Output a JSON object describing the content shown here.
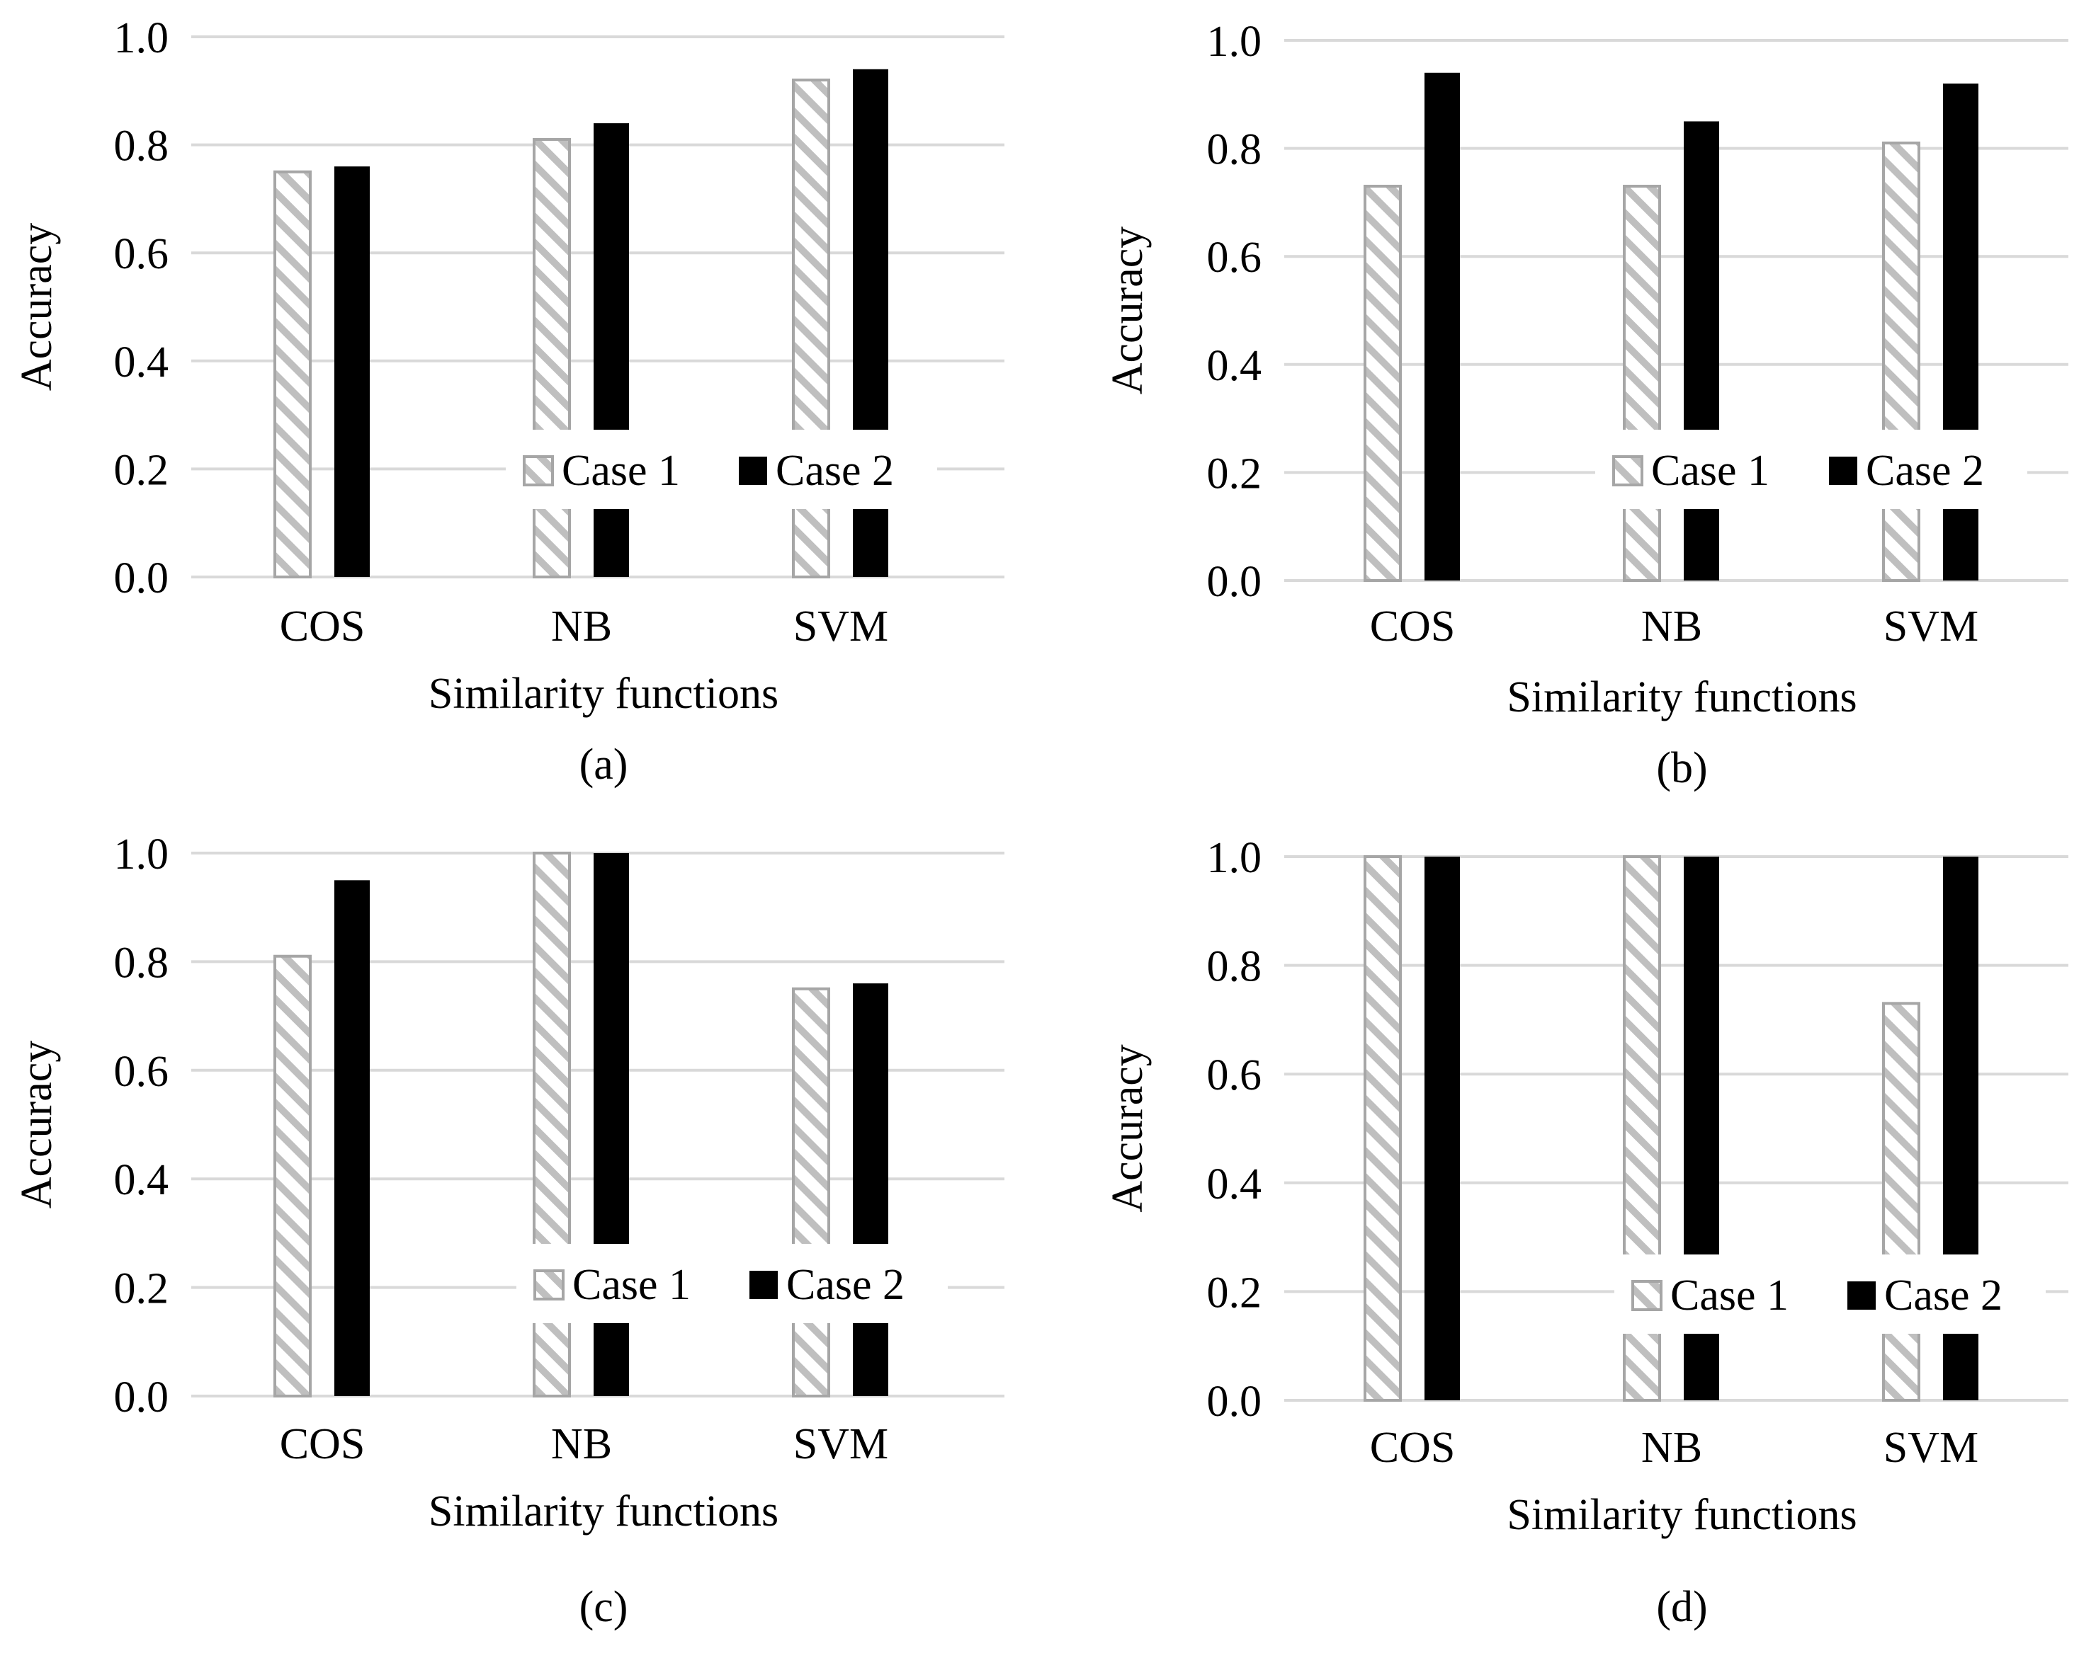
{
  "colors": {
    "case1_stroke": "#a6a6a6",
    "case1_hatch": "#bfbfbf",
    "case2_fill": "#000000",
    "gridline": "#d9d9d9",
    "background": "#ffffff"
  },
  "chart_data": [
    {
      "type": "bar",
      "panel_label": "(a)",
      "categories": [
        "COS",
        "NB",
        "SVM"
      ],
      "series": [
        {
          "name": "Case 1",
          "values": [
            0.75,
            0.81,
            0.92
          ]
        },
        {
          "name": "Case 2",
          "values": [
            0.76,
            0.84,
            0.94
          ]
        }
      ],
      "xlabel": "Similarity functions",
      "ylabel": "Accuracy",
      "ylim": [
        0,
        1
      ],
      "yticks": [
        "0.0",
        "0.2",
        "0.4",
        "0.6",
        "0.8",
        "1.0"
      ],
      "grid": true,
      "legend": "bottom-right"
    },
    {
      "type": "bar",
      "panel_label": "(b)",
      "categories": [
        "COS",
        "NB",
        "SVM"
      ],
      "series": [
        {
          "name": "Case 1",
          "values": [
            0.73,
            0.73,
            0.81
          ]
        },
        {
          "name": "Case 2",
          "values": [
            0.94,
            0.85,
            0.92
          ]
        }
      ],
      "xlabel": "Similarity functions",
      "ylabel": "Accuracy",
      "ylim": [
        0,
        1
      ],
      "yticks": [
        "0.0",
        "0.2",
        "0.4",
        "0.6",
        "0.8",
        "1.0"
      ],
      "grid": true,
      "legend": "bottom-right"
    },
    {
      "type": "bar",
      "panel_label": "(c)",
      "categories": [
        "COS",
        "NB",
        "SVM"
      ],
      "series": [
        {
          "name": "Case 1",
          "values": [
            0.81,
            1.0,
            0.75
          ]
        },
        {
          "name": "Case 2",
          "values": [
            0.95,
            1.0,
            0.76
          ]
        }
      ],
      "xlabel": "Similarity functions",
      "ylabel": "Accuracy",
      "ylim": [
        0,
        1
      ],
      "yticks": [
        "0.0",
        "0.2",
        "0.4",
        "0.6",
        "0.8",
        "1.0"
      ],
      "grid": true,
      "legend": "bottom-right"
    },
    {
      "type": "bar",
      "panel_label": "(d)",
      "categories": [
        "COS",
        "NB",
        "SVM"
      ],
      "series": [
        {
          "name": "Case 1",
          "values": [
            1.0,
            1.0,
            0.73
          ]
        },
        {
          "name": "Case 2",
          "values": [
            1.0,
            1.0,
            1.0
          ]
        }
      ],
      "xlabel": "Similarity functions",
      "ylabel": "Accuracy",
      "ylim": [
        0,
        1
      ],
      "yticks": [
        "0.0",
        "0.2",
        "0.4",
        "0.6",
        "0.8",
        "1.0"
      ],
      "grid": true,
      "legend": "bottom-right"
    }
  ]
}
